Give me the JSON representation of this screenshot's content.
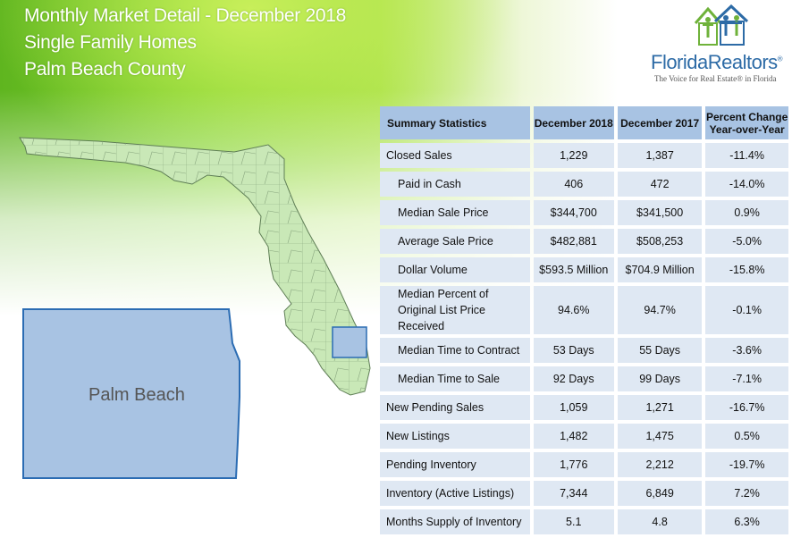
{
  "header": {
    "title_line1": "Monthly Market Detail - December 2018",
    "title_line2": "Single Family Homes",
    "title_line3": "Palm Beach County"
  },
  "logo": {
    "name": "FloridaRealtors",
    "registered": "®",
    "tagline": "The Voice for Real Estate® in Florida"
  },
  "map": {
    "county_label": "Palm Beach",
    "highlight_color": "#a8c3e3",
    "state_color": "#c7e8b6",
    "border_color": "#2b6cb3"
  },
  "table": {
    "headers": [
      "Summary Statistics",
      "December 2018",
      "December 2017",
      "Percent Change Year-over-Year"
    ],
    "rows": [
      {
        "label": "Closed Sales",
        "dec2018": "1,229",
        "dec2017": "1,387",
        "change": "-11.4%"
      },
      {
        "label": "Paid in Cash",
        "dec2018": "406",
        "dec2017": "472",
        "change": "-14.0%"
      },
      {
        "label": "Median Sale Price",
        "dec2018": "$344,700",
        "dec2017": "$341,500",
        "change": "0.9%"
      },
      {
        "label": "Average Sale Price",
        "dec2018": "$482,881",
        "dec2017": "$508,253",
        "change": "-5.0%"
      },
      {
        "label": "Dollar Volume",
        "dec2018": "$593.5 Million",
        "dec2017": "$704.9 Million",
        "change": "-15.8%"
      },
      {
        "label": "Median Percent of Original List Price Received",
        "dec2018": "94.6%",
        "dec2017": "94.7%",
        "change": "-0.1%"
      },
      {
        "label": "Median Time to Contract",
        "dec2018": "53 Days",
        "dec2017": "55 Days",
        "change": "-3.6%"
      },
      {
        "label": "Median Time to Sale",
        "dec2018": "92 Days",
        "dec2017": "99 Days",
        "change": "-7.1%"
      },
      {
        "label": "New Pending Sales",
        "dec2018": "1,059",
        "dec2017": "1,271",
        "change": "-16.7%"
      },
      {
        "label": "New Listings",
        "dec2018": "1,482",
        "dec2017": "1,475",
        "change": "0.5%"
      },
      {
        "label": "Pending Inventory",
        "dec2018": "1,776",
        "dec2017": "2,212",
        "change": "-19.7%"
      },
      {
        "label": "Inventory (Active Listings)",
        "dec2018": "7,344",
        "dec2017": "6,849",
        "change": "7.2%"
      },
      {
        "label": "Months Supply of Inventory",
        "dec2018": "5.1",
        "dec2017": "4.8",
        "change": "6.3%"
      }
    ]
  }
}
